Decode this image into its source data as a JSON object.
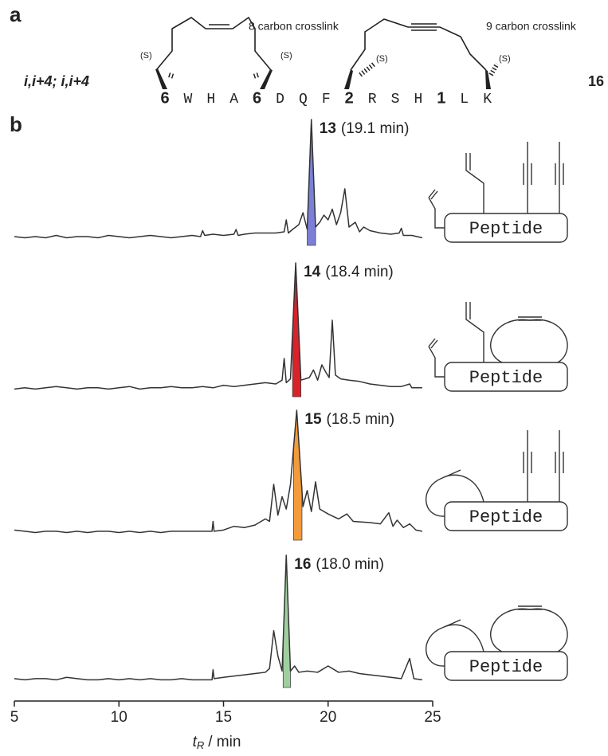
{
  "panel_a": {
    "label": "a",
    "name": "i,i+4; i,i+4",
    "compound": "16",
    "crosslinks": [
      "8 carbon crosslink",
      "9 carbon crosslink"
    ],
    "stereo_labels": [
      "(S)",
      "(S)",
      "(S)",
      "(S)"
    ],
    "sequence": [
      "6",
      "W",
      "H",
      "A",
      "6",
      "D",
      "Q",
      "F",
      "2",
      "R",
      "S",
      "H",
      "1",
      "L",
      "K"
    ]
  },
  "panel_b": {
    "label": "b",
    "schematic_labels": [
      "Peptide",
      "Peptide",
      "Peptide",
      "Peptide"
    ]
  },
  "chart_data": [
    {
      "type": "line",
      "compound": "13",
      "title": "(19.1 min)",
      "color": "#333333",
      "ylim": [
        0,
        100
      ],
      "x": [
        5,
        5.5,
        6,
        6.5,
        7,
        7.5,
        8,
        8.5,
        9,
        9.5,
        10,
        10.5,
        11,
        11.5,
        12,
        12.5,
        13,
        13.5,
        13.9,
        14,
        14.1,
        14.5,
        15,
        15.5,
        15.6,
        15.7,
        16,
        16.5,
        17,
        17.5,
        17.9,
        18,
        18.1,
        18.3,
        18.6,
        18.8,
        18.9,
        19.0,
        19.2,
        19.4,
        19.6,
        19.8,
        20.0,
        20.2,
        20.4,
        20.6,
        20.8,
        21.0,
        21.3,
        21.5,
        21.7,
        22,
        22.5,
        23,
        23.4,
        23.5,
        23.6,
        24,
        24.5
      ],
      "values": [
        2,
        1,
        2,
        1,
        3,
        1,
        2,
        2,
        1,
        3,
        2,
        1,
        2,
        3,
        2,
        1,
        2,
        3,
        2,
        7,
        3,
        4,
        3,
        4,
        8,
        3,
        4,
        5,
        5,
        5,
        6,
        16,
        5,
        8,
        12,
        22,
        15,
        8,
        100,
        10,
        14,
        20,
        16,
        25,
        12,
        22,
        42,
        10,
        14,
        6,
        10,
        7,
        5,
        4,
        5,
        9,
        3,
        3,
        1
      ],
      "highlight": {
        "start": 19.0,
        "end": 19.4,
        "color": "#7b80d6"
      }
    },
    {
      "type": "line",
      "compound": "14",
      "title": "(18.4 min)",
      "color": "#333333",
      "ylim": [
        0,
        100
      ],
      "x": [
        5,
        5.5,
        6,
        6.5,
        7,
        7.5,
        8,
        8.5,
        9,
        9.5,
        10,
        10.5,
        11,
        11.5,
        12,
        12.5,
        13,
        13.5,
        14,
        14.5,
        15,
        15.5,
        16,
        16.5,
        17,
        17.5,
        17.8,
        17.9,
        18.0,
        18.2,
        18.45,
        18.7,
        18.9,
        19.1,
        19.3,
        19.5,
        19.7,
        19.9,
        20.05,
        20.2,
        20.35,
        20.6,
        21,
        21.5,
        22,
        22.5,
        23,
        23.5,
        23.9,
        24,
        24.5
      ],
      "values": [
        1,
        2,
        1,
        2,
        3,
        2,
        1,
        2,
        2,
        1,
        2,
        3,
        1,
        2,
        2,
        3,
        2,
        2,
        3,
        2,
        4,
        3,
        4,
        5,
        6,
        5,
        8,
        25,
        6,
        9,
        100,
        8,
        9,
        10,
        16,
        8,
        20,
        14,
        10,
        55,
        12,
        9,
        8,
        7,
        5,
        4,
        3,
        3,
        5,
        2,
        2
      ],
      "highlight": {
        "start": 18.3,
        "end": 18.7,
        "color": "#d8232a"
      }
    },
    {
      "type": "line",
      "compound": "15",
      "title": "(18.5 min)",
      "color": "#333333",
      "ylim": [
        0,
        100
      ],
      "x": [
        5,
        5.5,
        6,
        6.5,
        7,
        7.5,
        8,
        8.5,
        9,
        9.5,
        10,
        10.5,
        11,
        11.5,
        12,
        12.5,
        13,
        13.5,
        14,
        14.45,
        14.5,
        14.55,
        15,
        15.5,
        16,
        16.5,
        17,
        17.2,
        17.4,
        17.6,
        17.8,
        18.0,
        18.2,
        18.5,
        18.8,
        19.0,
        19.2,
        19.4,
        19.6,
        20,
        20.5,
        20.9,
        21.2,
        22,
        22.5,
        22.9,
        23.1,
        23.3,
        23.6,
        23.9,
        24.2,
        24.5
      ],
      "values": [
        3,
        2,
        1,
        2,
        2,
        1,
        2,
        1,
        2,
        2,
        1,
        2,
        1,
        2,
        1,
        2,
        2,
        2,
        2,
        2,
        10,
        2,
        3,
        6,
        5,
        7,
        12,
        10,
        40,
        15,
        30,
        20,
        40,
        100,
        22,
        35,
        18,
        42,
        20,
        16,
        12,
        16,
        10,
        9,
        8,
        17,
        6,
        11,
        5,
        8,
        3,
        2
      ],
      "highlight": {
        "start": 18.35,
        "end": 18.75,
        "color": "#f39a3b"
      }
    },
    {
      "type": "line",
      "compound": "16",
      "title": "(18.0 min)",
      "color": "#333333",
      "ylim": [
        0,
        100
      ],
      "x": [
        5,
        5.5,
        6,
        6.5,
        7,
        7.5,
        8,
        8.5,
        9,
        9.5,
        10,
        10.5,
        11,
        11.5,
        12,
        12.5,
        13,
        13.5,
        14,
        14.45,
        14.5,
        14.55,
        15,
        15.5,
        16,
        16.5,
        17,
        17.2,
        17.4,
        17.6,
        17.8,
        18.0,
        18.2,
        18.4,
        18.6,
        19,
        19.5,
        20,
        20.5,
        21,
        21.5,
        22,
        22.5,
        23,
        23.5,
        23.9,
        24.1,
        24.5
      ],
      "values": [
        2,
        1,
        2,
        2,
        1,
        3,
        2,
        1,
        1,
        2,
        1,
        2,
        1,
        2,
        1,
        1,
        2,
        1,
        1,
        1,
        9,
        2,
        3,
        4,
        5,
        6,
        7,
        10,
        40,
        20,
        8,
        100,
        8,
        12,
        7,
        8,
        7,
        12,
        7,
        8,
        6,
        5,
        4,
        3,
        2,
        18,
        2,
        1
      ],
      "highlight": {
        "start": 17.85,
        "end": 18.2,
        "color": "#9fcf9f"
      },
      "xlim": [
        5,
        25
      ],
      "xticks": [
        5,
        10,
        15,
        20,
        25
      ],
      "xlabel": [
        "t",
        "R",
        "/ min"
      ]
    }
  ]
}
